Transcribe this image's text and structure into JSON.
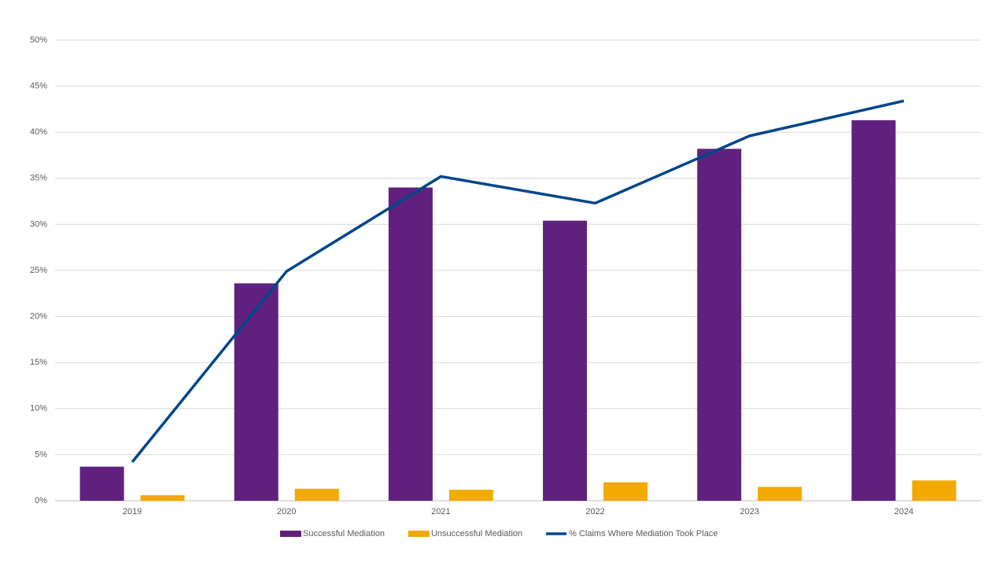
{
  "chart_data": {
    "type": "bar-line",
    "categories": [
      "2019",
      "2020",
      "2021",
      "2022",
      "2023",
      "2024"
    ],
    "series": [
      {
        "name": "Successful Mediation",
        "type": "bar",
        "color": "#60217e",
        "values": [
          3.7,
          23.6,
          34.0,
          30.4,
          38.2,
          41.3
        ]
      },
      {
        "name": "Unsuccessful Mediation",
        "type": "bar",
        "color": "#f2a900",
        "values": [
          0.6,
          1.3,
          1.2,
          2.0,
          1.5,
          2.2
        ]
      },
      {
        "name": "% Claims Where Mediation Took Place",
        "type": "line",
        "color": "#00468b",
        "values": [
          4.2,
          24.9,
          35.2,
          32.3,
          39.6,
          43.4
        ]
      }
    ],
    "ylim": [
      0,
      50
    ],
    "yticks": [
      {
        "value": 0,
        "label": "0%"
      },
      {
        "value": 5,
        "label": "5%"
      },
      {
        "value": 10,
        "label": "10%"
      },
      {
        "value": 15,
        "label": "15%"
      },
      {
        "value": 20,
        "label": "20%"
      },
      {
        "value": 25,
        "label": "25%"
      },
      {
        "value": 30,
        "label": "30%"
      },
      {
        "value": 35,
        "label": "35%"
      },
      {
        "value": 40,
        "label": "40%"
      },
      {
        "value": 45,
        "label": "45%"
      },
      {
        "value": 50,
        "label": "50%"
      }
    ],
    "grid": true,
    "legend": "bottom"
  }
}
